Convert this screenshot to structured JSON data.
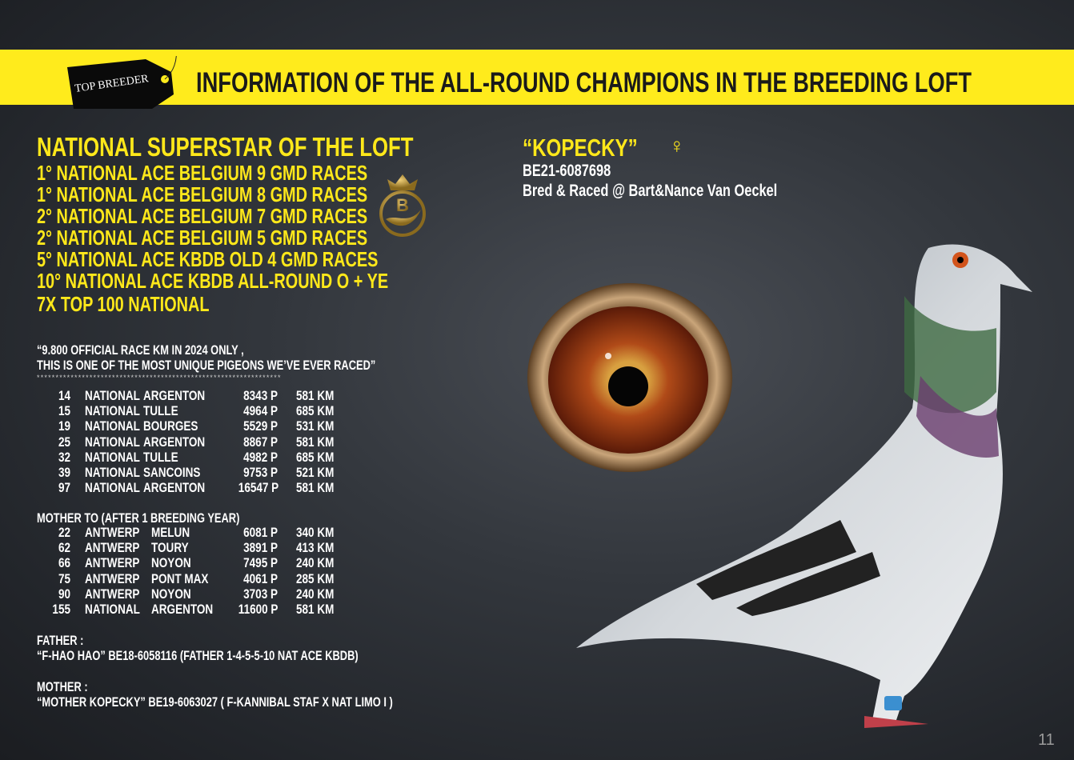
{
  "banner": {
    "tag_label": "TOP BREEDER",
    "title": "INFORMATION OF THE ALL-ROUND CHAMPIONS IN THE BREEDING LOFT",
    "color": "#ffeb1c"
  },
  "left": {
    "heading": "NATIONAL SUPERSTAR OF THE LOFT",
    "achievements": [
      "1° NATIONAL ACE  BELGIUM 9 GMD RACES",
      "1° NATIONAL ACE  BELGIUM 8 GMD RACES",
      "2° NATIONAL ACE  BELGIUM 7 GMD RACES",
      "2° NATIONAL ACE  BELGIUM 5 GMD RACES",
      "5° NATIONAL ACE KBDB OLD 4 GMD RACES",
      "10° NATIONAL ACE KBDB ALL-ROUND O + YE",
      "7X TOP 100 NATIONAL"
    ],
    "quote_line1": "“9.800 OFFICIAL RACE KM IN 2024 ONLY ,",
    "quote_line2": "THIS IS ONE OF THE MOST UNIQUE PIGEONS WE’VE EVER RACED”",
    "stars": "*****************************************************************",
    "results": [
      [
        "14",
        "NATIONAL",
        "ARGENTON",
        "8343 P",
        "581 KM"
      ],
      [
        "15",
        "NATIONAL",
        "TULLE",
        "4964 P",
        "685 KM"
      ],
      [
        "19",
        "NATIONAL",
        "BOURGES",
        "5529 P",
        "531 KM"
      ],
      [
        "25",
        "NATIONAL",
        "ARGENTON",
        "8867 P",
        "581 KM"
      ],
      [
        "32",
        "NATIONAL",
        "TULLE",
        "4982 P",
        "685 KM"
      ],
      [
        "39",
        "NATIONAL",
        "SANCOINS",
        "9753 P",
        "521 KM"
      ],
      [
        "97",
        "NATIONAL",
        "ARGENTON",
        "16547 P",
        "581 KM"
      ]
    ],
    "mother_to_heading": "MOTHER TO (AFTER 1 BREEDING YEAR)",
    "offspring_results": [
      [
        "22",
        "ANTWERP",
        "MELUN",
        "6081 P",
        "340 KM"
      ],
      [
        "62",
        "ANTWERP",
        "TOURY",
        "3891 P",
        "413 KM"
      ],
      [
        "66",
        "ANTWERP",
        "NOYON",
        "7495 P",
        "240 KM"
      ],
      [
        "75",
        "ANTWERP",
        "PONT MAX",
        "4061 P",
        "285 KM"
      ],
      [
        "90",
        "ANTWERP",
        "NOYON",
        "3703 P",
        "240 KM"
      ],
      [
        "155",
        "NATIONAL",
        "ARGENTON",
        "11600 P",
        "581 KM"
      ]
    ],
    "father_label": "FATHER :",
    "father": "“F-HAO HAO” BE18-6058116 (FATHER 1-4-5-5-10 NAT ACE KBDB)",
    "mother_label": "MOTHER :",
    "mother": "“MOTHER KOPECKY” BE19-6063027 ( F-KANNIBAL STAF X NAT LIMO I )",
    "emblem_letter": "B"
  },
  "right": {
    "name": "“KOPECKY”",
    "sex_symbol": "♀",
    "ring": "BE21-6087698",
    "bred": "Bred & Raced @ Bart&Nance Van Oeckel"
  },
  "page_number": "11"
}
